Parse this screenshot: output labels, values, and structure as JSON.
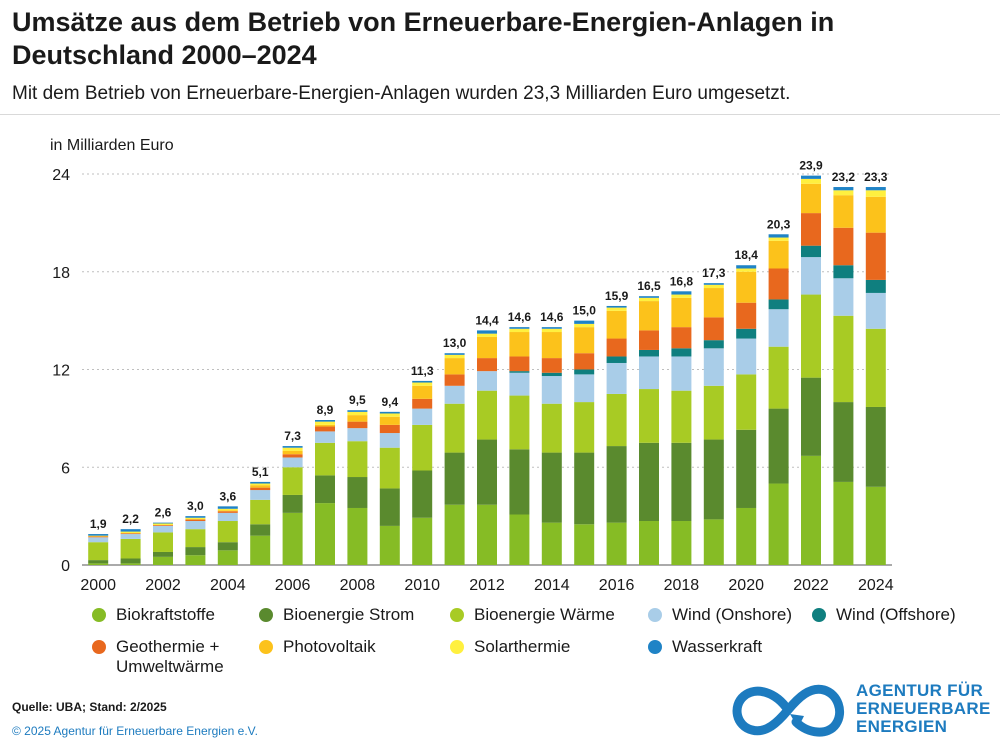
{
  "header": {
    "title": "Umsätze aus dem Betrieb von Erneuerbare-Energien-Anlagen in Deutschland 2000–2024",
    "subtitle": "Mit dem Betrieb von Erneuerbare-Energien-Anlagen wurden 23,3 Milliarden Euro umgesetzt."
  },
  "chart_data": {
    "type": "bar",
    "stacked": true,
    "title": "Umsätze aus dem Betrieb von Erneuerbare-Energien-Anlagen in Deutschland 2000–2024",
    "ylabel": "in Milliarden Euro",
    "xlabel": "",
    "ylim": [
      0,
      24
    ],
    "yticks": [
      "0",
      "6",
      "12",
      "18",
      "24"
    ],
    "grid": true,
    "legend_position": "bottom",
    "categories": [
      "2000",
      "2001",
      "2002",
      "2003",
      "2004",
      "2005",
      "2006",
      "2007",
      "2008",
      "2009",
      "2010",
      "2011",
      "2012",
      "2013",
      "2014",
      "2015",
      "2016",
      "2017",
      "2018",
      "2019",
      "2020",
      "2021",
      "2022",
      "2023",
      "2024"
    ],
    "x_tick_labels": [
      "2000",
      "",
      "2002",
      "",
      "2004",
      "",
      "2006",
      "",
      "2008",
      "",
      "2010",
      "",
      "2012",
      "",
      "2014",
      "",
      "2016",
      "",
      "2018",
      "",
      "2020",
      "",
      "2022",
      "",
      "2024"
    ],
    "totals": [
      "1,9",
      "2,2",
      "2,6",
      "3,0",
      "3,6",
      "5,1",
      "7,3",
      "8,9",
      "9,5",
      "9,4",
      "11,3",
      "13,0",
      "14,4",
      "14,6",
      "14,6",
      "15,0",
      "15,9",
      "16,5",
      "16,8",
      "17,3",
      "18,4",
      "20,3",
      "23,9",
      "23,2",
      "23,3"
    ],
    "series": [
      {
        "name": "Biokraftstoffe",
        "color": "#86bc25",
        "values": [
          0.1,
          0.1,
          0.5,
          0.6,
          0.9,
          1.8,
          3.2,
          3.8,
          3.5,
          2.4,
          2.9,
          3.7,
          3.7,
          3.1,
          2.6,
          2.5,
          2.6,
          2.7,
          2.7,
          2.8,
          3.5,
          5.0,
          6.7,
          5.1,
          4.8
        ]
      },
      {
        "name": "Bioenergie Strom",
        "color": "#5a8a2e",
        "values": [
          0.2,
          0.3,
          0.3,
          0.5,
          0.5,
          0.7,
          1.1,
          1.7,
          1.9,
          2.3,
          2.9,
          3.2,
          4.0,
          4.0,
          4.3,
          4.4,
          4.7,
          4.8,
          4.8,
          4.9,
          4.8,
          4.6,
          4.8,
          4.9,
          4.9
        ]
      },
      {
        "name": "Bioenergie Wärme",
        "color": "#a8cb24",
        "values": [
          1.1,
          1.2,
          1.2,
          1.1,
          1.3,
          1.5,
          1.7,
          2.0,
          2.2,
          2.5,
          2.8,
          3.0,
          3.0,
          3.3,
          3.0,
          3.1,
          3.2,
          3.3,
          3.2,
          3.3,
          3.4,
          3.8,
          5.1,
          5.3,
          4.8
        ]
      },
      {
        "name": "Wind (Onshore)",
        "color": "#a9cde8",
        "values": [
          0.3,
          0.3,
          0.4,
          0.5,
          0.5,
          0.6,
          0.6,
          0.7,
          0.8,
          0.9,
          1.0,
          1.1,
          1.2,
          1.4,
          1.7,
          1.7,
          1.9,
          2.0,
          2.1,
          2.3,
          2.2,
          2.3,
          2.3,
          2.3,
          2.2
        ]
      },
      {
        "name": "Wind (Offshore)",
        "color": "#0f7f7f",
        "values": [
          0,
          0,
          0,
          0,
          0,
          0,
          0,
          0,
          0,
          0,
          0,
          0,
          0,
          0.1,
          0.2,
          0.3,
          0.4,
          0.4,
          0.5,
          0.5,
          0.6,
          0.6,
          0.7,
          0.8,
          0.8
        ]
      },
      {
        "name": "Geothermie + Umweltwärme",
        "color": "#e8681e",
        "values": [
          0.05,
          0.05,
          0.05,
          0.1,
          0.1,
          0.15,
          0.2,
          0.3,
          0.4,
          0.5,
          0.6,
          0.7,
          0.8,
          0.9,
          0.9,
          1.0,
          1.1,
          1.2,
          1.3,
          1.4,
          1.6,
          1.9,
          2.0,
          2.3,
          2.9
        ]
      },
      {
        "name": "Photovoltaik",
        "color": "#fcc21b",
        "values": [
          0,
          0,
          0,
          0,
          0.05,
          0.15,
          0.2,
          0.1,
          0.4,
          0.5,
          0.8,
          1.0,
          1.3,
          1.5,
          1.6,
          1.6,
          1.7,
          1.8,
          1.8,
          1.8,
          1.9,
          1.7,
          1.8,
          2.0,
          2.2
        ]
      },
      {
        "name": "Solarthermie",
        "color": "#fff03f",
        "values": [
          0.05,
          0.1,
          0.1,
          0.1,
          0.1,
          0.1,
          0.2,
          0.2,
          0.2,
          0.2,
          0.2,
          0.2,
          0.2,
          0.2,
          0.2,
          0.2,
          0.2,
          0.2,
          0.2,
          0.2,
          0.2,
          0.2,
          0.3,
          0.3,
          0.4
        ]
      },
      {
        "name": "Wasserkraft",
        "color": "#1f83c6",
        "values": [
          0.1,
          0.15,
          0.05,
          0.1,
          0.15,
          0.1,
          0.1,
          0.1,
          0.1,
          0.1,
          0.1,
          0.1,
          0.2,
          0.1,
          0.1,
          0.2,
          0.1,
          0.1,
          0.2,
          0.1,
          0.2,
          0.2,
          0.2,
          0.2,
          0.2
        ]
      }
    ]
  },
  "legend": [
    {
      "label": "Biokraftstoffe",
      "color": "#86bc25"
    },
    {
      "label": "Bioenergie Strom",
      "color": "#5a8a2e"
    },
    {
      "label": "Bioenergie Wärme",
      "color": "#a8cb24"
    },
    {
      "label": "Wind (Onshore)",
      "color": "#a9cde8"
    },
    {
      "label": "Wind (Offshore)",
      "color": "#0f7f7f"
    },
    {
      "label": "Geothermie +\nUmweltwärme",
      "color": "#e8681e"
    },
    {
      "label": "Photovoltaik",
      "color": "#fcc21b"
    },
    {
      "label": "Solarthermie",
      "color": "#fff03f"
    },
    {
      "label": "Wasserkraft",
      "color": "#1f83c6"
    }
  ],
  "footer": {
    "source": "Quelle: UBA; Stand: 2/2025",
    "copyright": "© 2025 Agentur für Erneuerbare Energien e.V."
  },
  "logo": {
    "line1": "AGENTUR FÜR",
    "line2": "ERNEUERBARE",
    "line3": "ENERGIEN",
    "color": "#1d7bbf"
  }
}
